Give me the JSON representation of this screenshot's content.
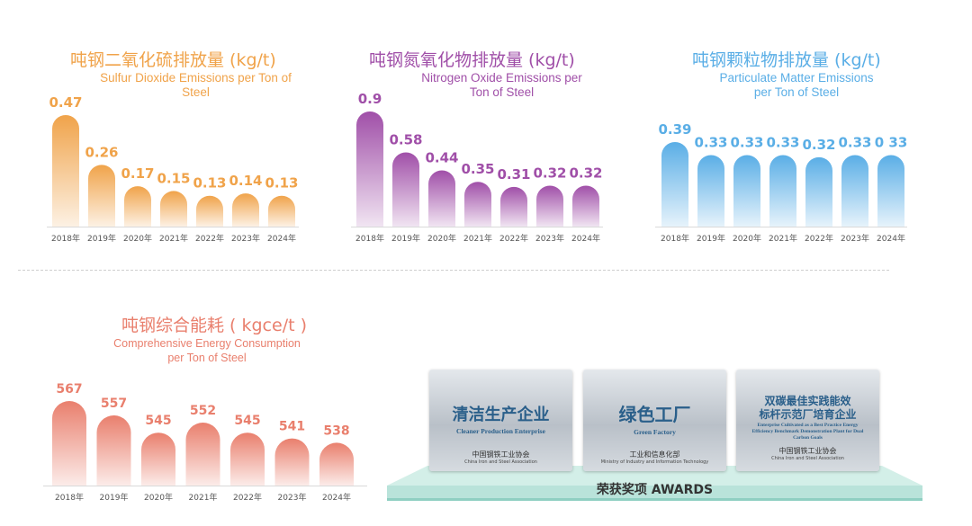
{
  "colors": {
    "orange": "#f0a34a",
    "purple": "#a04fa8",
    "blue": "#5aaee6",
    "salmon": "#e97f6d",
    "badge_text": "#2a5f8a",
    "platform": "#b9e3da"
  },
  "chart_data": [
    {
      "type": "bar",
      "title": "吨钢二氧化硫排放量 (kg/t)",
      "subtitle": "Sulfur Dioxide Emissions per Ton of Steel",
      "categories": [
        "2018年",
        "2019年",
        "2020年",
        "2021年",
        "2022年",
        "2023年",
        "2024年"
      ],
      "values": [
        0.47,
        0.26,
        0.17,
        0.15,
        0.13,
        0.14,
        0.13
      ],
      "value_labels": [
        "0.47",
        "0.26",
        "0.17",
        "0.15",
        "0.13",
        "0.14",
        "0.13"
      ],
      "color": "#f0a34a"
    },
    {
      "type": "bar",
      "title": "吨钢氮氧化物排放量 (kg/t)",
      "subtitle": "Nitrogen Oxide Emissions per Ton of Steel",
      "categories": [
        "2018年",
        "2019年",
        "2020年",
        "2021年",
        "2022年",
        "2023年",
        "2024年"
      ],
      "values": [
        0.9,
        0.58,
        0.44,
        0.35,
        0.31,
        0.32,
        0.32
      ],
      "value_labels": [
        "0.9",
        "0.58",
        "0.44",
        "0.35",
        "0.31",
        "0.32",
        "0.32"
      ],
      "color": "#a04fa8"
    },
    {
      "type": "bar",
      "title": "吨钢颗粒物排放量 (kg/t)",
      "subtitle": "Particulate Matter Emissions per Ton of Steel",
      "categories": [
        "2018年",
        "2019年",
        "2020年",
        "2021年",
        "2022年",
        "2023年",
        "2024年"
      ],
      "values": [
        0.39,
        0.33,
        0.33,
        0.33,
        0.32,
        0.33,
        0.33
      ],
      "value_labels": [
        "0.39",
        "0.33",
        "0.33",
        "0.33",
        "0.32",
        "0.33",
        "0 33"
      ],
      "color": "#5aaee6"
    },
    {
      "type": "bar",
      "title": "吨钢综合能耗 ( kgce/t )",
      "subtitle": "Comprehensive Energy Consumption per Ton of Steel",
      "categories": [
        "2018年",
        "2019年",
        "2020年",
        "2021年",
        "2022年",
        "2023年",
        "2024年"
      ],
      "values": [
        567,
        557,
        545,
        552,
        545,
        541,
        538
      ],
      "value_labels": [
        "567",
        "557",
        "545",
        "552",
        "545",
        "541",
        "538"
      ],
      "color": "#e97f6d"
    }
  ],
  "awards": {
    "label": "荣获奖项 AWARDS",
    "items": [
      {
        "zh": "清洁生产企业",
        "en": "Cleaner Production Enterprise",
        "org_zh": "中国钢铁工业协会",
        "org_en": "China Iron and Steel Association"
      },
      {
        "zh": "绿色工厂",
        "en": "Green Factory",
        "org_zh": "工业和信息化部",
        "org_en": "Ministry of Industry and Information Technology"
      },
      {
        "zh_line1": "双碳最佳实践能效",
        "zh_line2": "标杆示范厂培育企业",
        "en": "Enterprise Cultivated as a Best Practice Energy Efficiency Benchmark Demonstration Plant for Dual Carbon Goals",
        "org_zh": "中国钢铁工业协会",
        "org_en": "China Iron and Steel Association"
      }
    ]
  }
}
